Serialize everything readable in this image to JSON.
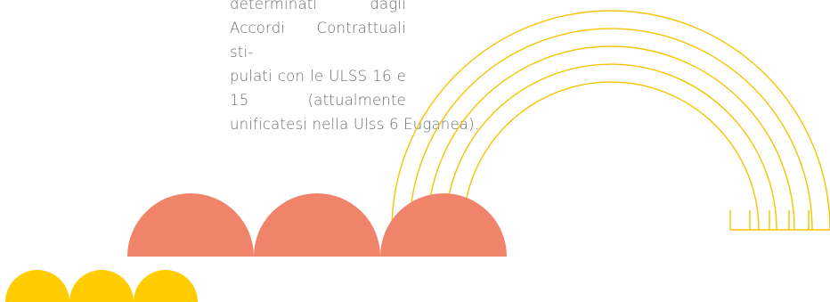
{
  "document": {
    "paragraph_lines": [
      "determinati dagli Accordi Contrattuali sti-",
      "pulati con le ULSS 16 e 15 (attualmente",
      "unificatesi nella Ulss 6 Euganea)."
    ]
  },
  "colors": {
    "text": "#6d6e71",
    "rainbow_stroke": "#f6c400",
    "salmon_semicircles": "#ef846a",
    "yellow_semicircles": "#ffcc00",
    "background": "#ffffff"
  },
  "decorations": {
    "rainbow_arc_count": 5,
    "salmon_semicircle_count": 3,
    "yellow_semicircle_count": 3
  }
}
